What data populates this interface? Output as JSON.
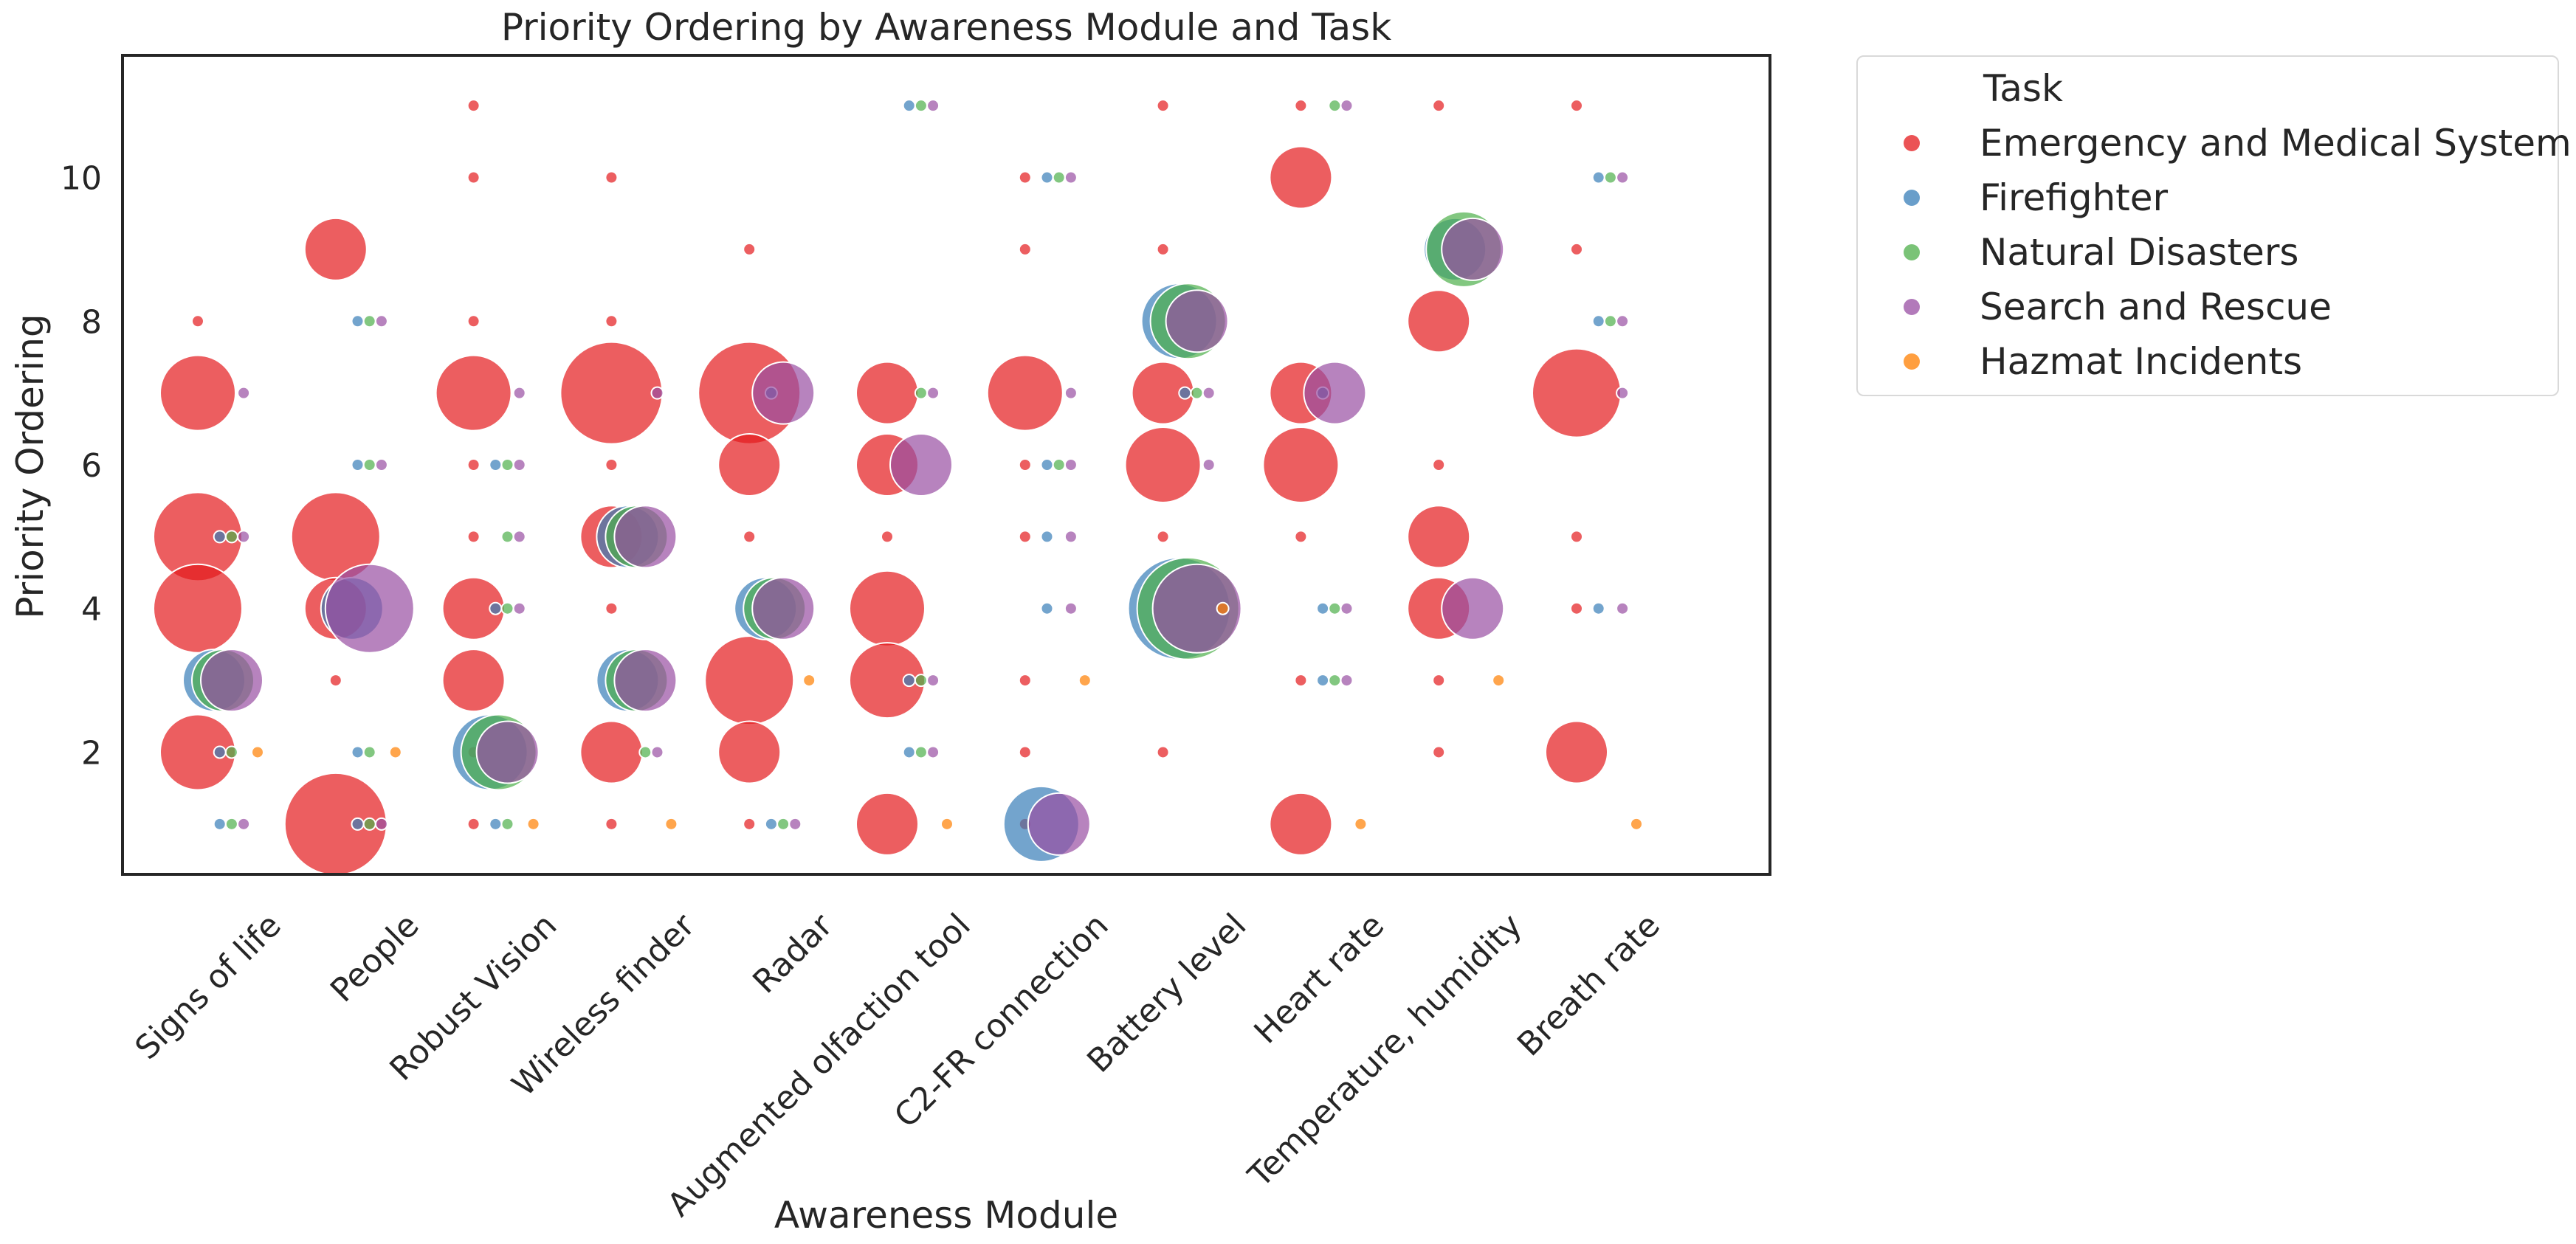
{
  "chart_data": {
    "type": "scatter",
    "title": "Priority Ordering by Awareness Module and Task",
    "xlabel": "Awareness Module",
    "ylabel": "Priority Ordering",
    "categories": [
      "Signs of life",
      "People",
      "Robust Vision",
      "Wireless finder",
      "Radar",
      "Augmented olfaction tool",
      "C2-FR connection",
      "Battery level",
      "Heart rate",
      "Temperature, humidity",
      "Breath rate"
    ],
    "ylim": [
      0.3,
      11.7
    ],
    "yticks": [
      2,
      4,
      6,
      8,
      10
    ],
    "grid": false,
    "legend": {
      "title": "Task",
      "placement": "outside-top-right"
    },
    "series": [
      {
        "name": "Emergency and Medical System",
        "color": "#e41a1c",
        "points": [
          [
            0,
            8,
            1
          ],
          [
            0,
            7,
            4
          ],
          [
            0,
            5,
            5
          ],
          [
            0,
            4,
            5
          ],
          [
            0,
            2,
            4
          ],
          [
            1,
            9,
            3
          ],
          [
            1,
            5,
            5
          ],
          [
            1,
            4,
            3
          ],
          [
            1,
            3,
            1
          ],
          [
            1,
            1,
            6
          ],
          [
            2,
            11,
            1
          ],
          [
            2,
            10,
            1
          ],
          [
            2,
            8,
            1
          ],
          [
            2,
            7,
            4
          ],
          [
            2,
            6,
            1
          ],
          [
            2,
            5,
            1
          ],
          [
            2,
            4,
            3
          ],
          [
            2,
            3,
            3
          ],
          [
            2,
            2,
            1
          ],
          [
            2,
            1,
            1
          ],
          [
            3,
            10,
            1
          ],
          [
            3,
            8,
            1
          ],
          [
            3,
            7,
            6
          ],
          [
            3,
            6,
            1
          ],
          [
            3,
            5,
            3
          ],
          [
            3,
            4,
            1
          ],
          [
            3,
            2,
            3
          ],
          [
            3,
            1,
            1
          ],
          [
            4,
            9,
            1
          ],
          [
            4,
            7,
            6
          ],
          [
            4,
            6,
            3
          ],
          [
            4,
            5,
            1
          ],
          [
            4,
            3,
            5
          ],
          [
            4,
            2,
            3
          ],
          [
            4,
            1,
            1
          ],
          [
            5,
            7,
            3
          ],
          [
            5,
            6,
            3
          ],
          [
            5,
            5,
            1
          ],
          [
            5,
            4,
            4
          ],
          [
            5,
            3,
            4
          ],
          [
            5,
            1,
            3
          ],
          [
            6,
            10,
            1
          ],
          [
            6,
            9,
            1
          ],
          [
            6,
            7,
            4
          ],
          [
            6,
            6,
            1
          ],
          [
            6,
            5,
            1
          ],
          [
            6,
            3,
            1
          ],
          [
            6,
            2,
            1
          ],
          [
            6,
            1,
            1
          ],
          [
            7,
            11,
            1
          ],
          [
            7,
            9,
            1
          ],
          [
            7,
            7,
            3
          ],
          [
            7,
            6,
            4
          ],
          [
            7,
            5,
            1
          ],
          [
            7,
            2,
            1
          ],
          [
            8,
            11,
            1
          ],
          [
            8,
            10,
            3
          ],
          [
            8,
            7,
            3
          ],
          [
            8,
            6,
            4
          ],
          [
            8,
            5,
            1
          ],
          [
            8,
            3,
            1
          ],
          [
            8,
            1,
            3
          ],
          [
            9,
            11,
            1
          ],
          [
            9,
            8,
            3
          ],
          [
            9,
            6,
            1
          ],
          [
            9,
            5,
            3
          ],
          [
            9,
            4,
            3
          ],
          [
            9,
            3,
            1
          ],
          [
            9,
            2,
            1
          ],
          [
            10,
            11,
            1
          ],
          [
            10,
            9,
            1
          ],
          [
            10,
            7,
            5
          ],
          [
            10,
            5,
            1
          ],
          [
            10,
            4,
            1
          ],
          [
            10,
            2,
            3
          ]
        ]
      },
      {
        "name": "Firefighter",
        "color": "#377eb8",
        "points": [
          [
            0,
            5,
            1
          ],
          [
            0,
            3,
            3
          ],
          [
            0,
            2,
            1
          ],
          [
            0,
            1,
            1
          ],
          [
            1,
            8,
            1
          ],
          [
            1,
            6,
            1
          ],
          [
            1,
            4,
            3
          ],
          [
            1,
            2,
            1
          ],
          [
            1,
            1,
            1
          ],
          [
            2,
            6,
            1
          ],
          [
            2,
            4,
            1
          ],
          [
            2,
            2,
            4
          ],
          [
            2,
            1,
            1
          ],
          [
            3,
            5,
            3
          ],
          [
            3,
            3,
            3
          ],
          [
            4,
            7,
            1
          ],
          [
            4,
            4,
            3
          ],
          [
            4,
            1,
            1
          ],
          [
            5,
            11,
            1
          ],
          [
            5,
            3,
            1
          ],
          [
            5,
            2,
            1
          ],
          [
            6,
            10,
            1
          ],
          [
            6,
            6,
            1
          ],
          [
            6,
            5,
            1
          ],
          [
            6,
            4,
            1
          ],
          [
            6,
            1,
            4
          ],
          [
            7,
            8,
            4
          ],
          [
            7,
            7,
            1
          ],
          [
            7,
            4,
            6
          ],
          [
            8,
            7,
            1
          ],
          [
            8,
            4,
            1
          ],
          [
            8,
            3,
            1
          ],
          [
            9,
            9,
            3
          ],
          [
            10,
            10,
            1
          ],
          [
            10,
            8,
            1
          ],
          [
            10,
            4,
            1
          ]
        ]
      },
      {
        "name": "Natural Disasters",
        "color": "#4daf4a",
        "points": [
          [
            0,
            5,
            1
          ],
          [
            0,
            3,
            3
          ],
          [
            0,
            2,
            1
          ],
          [
            0,
            1,
            1
          ],
          [
            1,
            8,
            1
          ],
          [
            1,
            6,
            1
          ],
          [
            1,
            2,
            1
          ],
          [
            1,
            1,
            1
          ],
          [
            2,
            6,
            1
          ],
          [
            2,
            5,
            1
          ],
          [
            2,
            4,
            1
          ],
          [
            2,
            2,
            4
          ],
          [
            2,
            1,
            1
          ],
          [
            3,
            5,
            3
          ],
          [
            3,
            3,
            3
          ],
          [
            3,
            2,
            1
          ],
          [
            4,
            4,
            3
          ],
          [
            4,
            1,
            1
          ],
          [
            5,
            11,
            1
          ],
          [
            5,
            7,
            1
          ],
          [
            5,
            3,
            1
          ],
          [
            5,
            2,
            1
          ],
          [
            6,
            10,
            1
          ],
          [
            6,
            6,
            1
          ],
          [
            7,
            8,
            4
          ],
          [
            7,
            7,
            1
          ],
          [
            7,
            4,
            6
          ],
          [
            8,
            11,
            1
          ],
          [
            8,
            4,
            1
          ],
          [
            8,
            3,
            1
          ],
          [
            9,
            9,
            4
          ],
          [
            10,
            10,
            1
          ],
          [
            10,
            8,
            1
          ]
        ]
      },
      {
        "name": "Search and Rescue",
        "color": "#984ea3",
        "points": [
          [
            0,
            7,
            1
          ],
          [
            0,
            5,
            1
          ],
          [
            0,
            3,
            3
          ],
          [
            0,
            1,
            1
          ],
          [
            1,
            8,
            1
          ],
          [
            1,
            6,
            1
          ],
          [
            1,
            4,
            5
          ],
          [
            1,
            1,
            1
          ],
          [
            2,
            7,
            1
          ],
          [
            2,
            6,
            1
          ],
          [
            2,
            5,
            1
          ],
          [
            2,
            4,
            1
          ],
          [
            2,
            2,
            3
          ],
          [
            3,
            7,
            1
          ],
          [
            3,
            5,
            3
          ],
          [
            3,
            3,
            3
          ],
          [
            3,
            2,
            1
          ],
          [
            4,
            7,
            3
          ],
          [
            4,
            4,
            3
          ],
          [
            4,
            1,
            1
          ],
          [
            5,
            11,
            1
          ],
          [
            5,
            7,
            1
          ],
          [
            5,
            6,
            3
          ],
          [
            5,
            3,
            1
          ],
          [
            5,
            2,
            1
          ],
          [
            6,
            10,
            1
          ],
          [
            6,
            7,
            1
          ],
          [
            6,
            6,
            1
          ],
          [
            6,
            5,
            1
          ],
          [
            6,
            4,
            1
          ],
          [
            6,
            1,
            3
          ],
          [
            7,
            8,
            3
          ],
          [
            7,
            7,
            1
          ],
          [
            7,
            6,
            1
          ],
          [
            7,
            4,
            5
          ],
          [
            8,
            11,
            1
          ],
          [
            8,
            7,
            3
          ],
          [
            8,
            4,
            1
          ],
          [
            8,
            3,
            1
          ],
          [
            9,
            9,
            3
          ],
          [
            9,
            4,
            3
          ],
          [
            10,
            10,
            1
          ],
          [
            10,
            8,
            1
          ],
          [
            10,
            7,
            1
          ],
          [
            10,
            4,
            1
          ]
        ]
      },
      {
        "name": "Hazmat Incidents",
        "color": "#ff7f00",
        "points": [
          [
            0,
            2,
            1
          ],
          [
            1,
            2,
            1
          ],
          [
            2,
            1,
            1
          ],
          [
            3,
            1,
            1
          ],
          [
            4,
            3,
            1
          ],
          [
            5,
            1,
            1
          ],
          [
            6,
            3,
            1
          ],
          [
            7,
            4,
            1
          ],
          [
            8,
            1,
            1
          ],
          [
            9,
            3,
            1
          ],
          [
            10,
            1,
            1
          ]
        ]
      }
    ]
  }
}
